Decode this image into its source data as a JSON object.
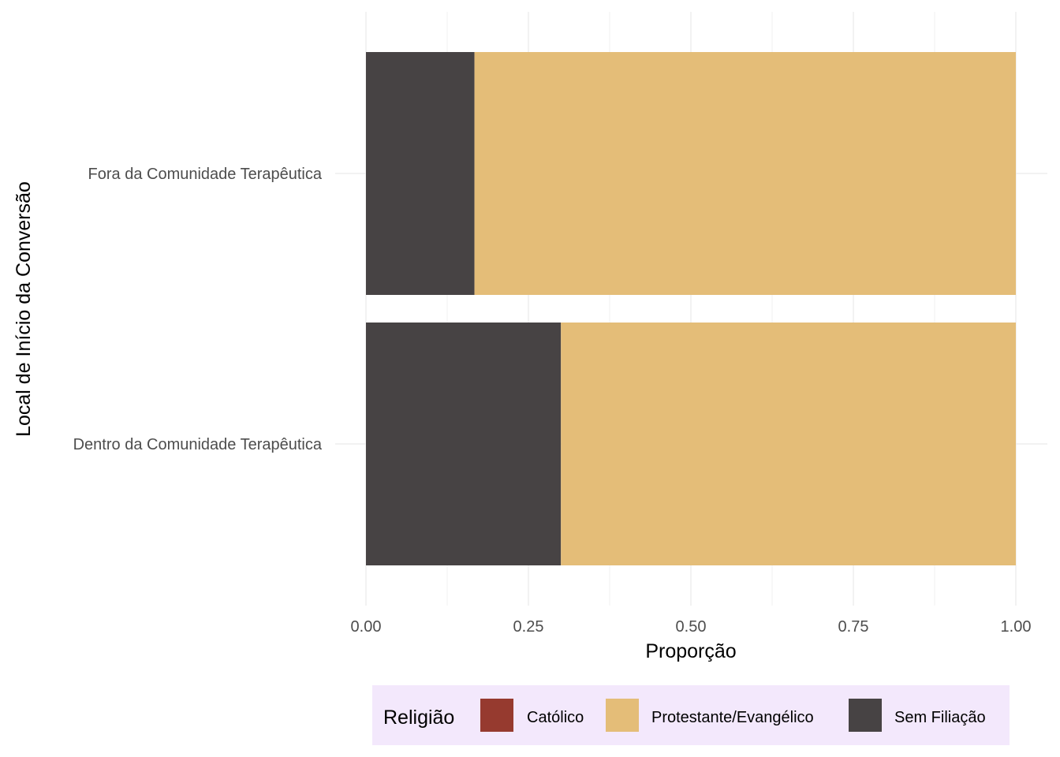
{
  "chart_data": {
    "type": "bar",
    "orientation": "horizontal",
    "stacked": true,
    "categories": [
      "Fora da Comunidade Terapêutica",
      "Dentro da Comunidade Terapêutica"
    ],
    "series": [
      {
        "name": "Católico",
        "color": "#963a2f",
        "values": [
          0,
          0
        ]
      },
      {
        "name": "Protestante/Evangélico",
        "color": "#e4bd78",
        "values": [
          0.833,
          0.7
        ]
      },
      {
        "name": "Sem Filiação",
        "color": "#474344",
        "values": [
          0.167,
          0.3
        ]
      }
    ],
    "stack_order_from_left": [
      "Sem Filiação",
      "Protestante/Evangélico",
      "Católico"
    ],
    "xlabel": "Proporção",
    "ylabel": "Local de Início da Conversão",
    "xlim": [
      0,
      1
    ],
    "xticks": [
      {
        "value": 0,
        "label": "0.00"
      },
      {
        "value": 0.25,
        "label": "0.25"
      },
      {
        "value": 0.5,
        "label": "0.50"
      },
      {
        "value": 0.75,
        "label": "0.75"
      },
      {
        "value": 1,
        "label": "1.00"
      }
    ],
    "grid": true,
    "legend": {
      "title": "Religião",
      "position": "bottom",
      "background": "#f3e8fc"
    }
  }
}
